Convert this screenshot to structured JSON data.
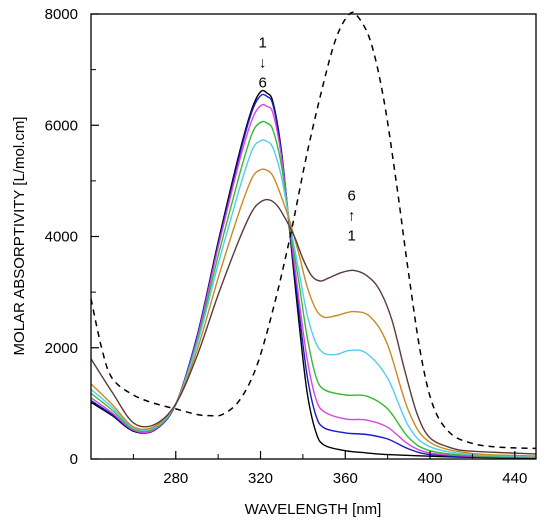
{
  "chart_data": {
    "type": "line",
    "xlabel": "WAVELENGTH [nm]",
    "ylabel": "MOLAR ABSORPTIVITY [L/mol.cm]",
    "xlim": [
      240,
      450
    ],
    "ylim": [
      0,
      8000
    ],
    "xticks": [
      280,
      320,
      360,
      400,
      440
    ],
    "xminor": [
      260,
      300,
      340,
      380,
      420
    ],
    "yticks": [
      0,
      2000,
      4000,
      6000,
      8000
    ],
    "ytick_labels": [
      "0",
      "2000",
      "4000",
      "6000",
      "8000"
    ],
    "xtick_labels": [
      "280",
      "320",
      "360",
      "400",
      "440"
    ],
    "grid": false,
    "annotations": [
      {
        "lines": [
          "1",
          "↓",
          "6"
        ],
        "x": 321,
        "y": 7400
      },
      {
        "lines": [
          "6",
          "↑",
          "1"
        ],
        "x": 363,
        "y": 4650
      }
    ],
    "series": [
      {
        "color": "#000000",
        "dash": false,
        "points": [
          [
            240,
            1020
          ],
          [
            250,
            780
          ],
          [
            260,
            500
          ],
          [
            270,
            520
          ],
          [
            280,
            980
          ],
          [
            290,
            2200
          ],
          [
            300,
            3900
          ],
          [
            310,
            5500
          ],
          [
            316,
            6300
          ],
          [
            320,
            6600
          ],
          [
            323,
            6580
          ],
          [
            326,
            6400
          ],
          [
            330,
            5500
          ],
          [
            334,
            4000
          ],
          [
            338,
            2500
          ],
          [
            342,
            1200
          ],
          [
            346,
            500
          ],
          [
            350,
            250
          ],
          [
            360,
            150
          ],
          [
            370,
            110
          ],
          [
            380,
            80
          ],
          [
            400,
            50
          ],
          [
            420,
            30
          ],
          [
            450,
            20
          ]
        ]
      },
      {
        "color": "#1a1acc",
        "dash": false,
        "points": [
          [
            240,
            1050
          ],
          [
            250,
            800
          ],
          [
            260,
            510
          ],
          [
            270,
            520
          ],
          [
            280,
            990
          ],
          [
            290,
            2200
          ],
          [
            300,
            3850
          ],
          [
            310,
            5450
          ],
          [
            316,
            6250
          ],
          [
            320,
            6530
          ],
          [
            323,
            6520
          ],
          [
            326,
            6350
          ],
          [
            330,
            5480
          ],
          [
            334,
            4050
          ],
          [
            338,
            2700
          ],
          [
            342,
            1500
          ],
          [
            346,
            800
          ],
          [
            350,
            560
          ],
          [
            360,
            470
          ],
          [
            370,
            440
          ],
          [
            380,
            360
          ],
          [
            390,
            180
          ],
          [
            400,
            80
          ],
          [
            420,
            40
          ],
          [
            450,
            25
          ]
        ]
      },
      {
        "color": "#dd44dd",
        "dash": false,
        "points": [
          [
            240,
            1100
          ],
          [
            250,
            830
          ],
          [
            260,
            520
          ],
          [
            270,
            530
          ],
          [
            280,
            990
          ],
          [
            290,
            2150
          ],
          [
            300,
            3800
          ],
          [
            310,
            5350
          ],
          [
            316,
            6100
          ],
          [
            320,
            6350
          ],
          [
            323,
            6340
          ],
          [
            326,
            6200
          ],
          [
            330,
            5400
          ],
          [
            334,
            4100
          ],
          [
            338,
            2900
          ],
          [
            342,
            1800
          ],
          [
            346,
            1100
          ],
          [
            350,
            850
          ],
          [
            360,
            720
          ],
          [
            370,
            700
          ],
          [
            380,
            570
          ],
          [
            390,
            260
          ],
          [
            400,
            110
          ],
          [
            420,
            50
          ],
          [
            450,
            30
          ]
        ]
      },
      {
        "color": "#33bb33",
        "dash": false,
        "points": [
          [
            240,
            1180
          ],
          [
            250,
            880
          ],
          [
            260,
            540
          ],
          [
            270,
            550
          ],
          [
            280,
            990
          ],
          [
            290,
            2100
          ],
          [
            300,
            3650
          ],
          [
            310,
            5100
          ],
          [
            316,
            5850
          ],
          [
            320,
            6050
          ],
          [
            323,
            6040
          ],
          [
            326,
            5900
          ],
          [
            330,
            5250
          ],
          [
            334,
            4150
          ],
          [
            338,
            3200
          ],
          [
            342,
            2200
          ],
          [
            346,
            1500
          ],
          [
            350,
            1250
          ],
          [
            360,
            1150
          ],
          [
            370,
            1130
          ],
          [
            380,
            900
          ],
          [
            390,
            380
          ],
          [
            400,
            150
          ],
          [
            420,
            60
          ],
          [
            450,
            35
          ]
        ]
      },
      {
        "color": "#55ccee",
        "dash": false,
        "points": [
          [
            240,
            1250
          ],
          [
            250,
            930
          ],
          [
            260,
            560
          ],
          [
            270,
            570
          ],
          [
            280,
            990
          ],
          [
            290,
            2050
          ],
          [
            300,
            3500
          ],
          [
            310,
            4850
          ],
          [
            316,
            5550
          ],
          [
            320,
            5720
          ],
          [
            323,
            5710
          ],
          [
            326,
            5580
          ],
          [
            330,
            5050
          ],
          [
            334,
            4200
          ],
          [
            338,
            3400
          ],
          [
            342,
            2600
          ],
          [
            346,
            2100
          ],
          [
            350,
            1900
          ],
          [
            356,
            1880
          ],
          [
            362,
            1950
          ],
          [
            370,
            1900
          ],
          [
            380,
            1450
          ],
          [
            390,
            580
          ],
          [
            400,
            220
          ],
          [
            420,
            80
          ],
          [
            450,
            45
          ]
        ]
      },
      {
        "color": "#cc8822",
        "dash": false,
        "points": [
          [
            240,
            1350
          ],
          [
            250,
            980
          ],
          [
            260,
            580
          ],
          [
            270,
            590
          ],
          [
            280,
            990
          ],
          [
            290,
            1950
          ],
          [
            300,
            3250
          ],
          [
            310,
            4450
          ],
          [
            316,
            5050
          ],
          [
            320,
            5200
          ],
          [
            323,
            5190
          ],
          [
            326,
            5080
          ],
          [
            330,
            4700
          ],
          [
            334,
            4250
          ],
          [
            338,
            3700
          ],
          [
            342,
            3100
          ],
          [
            346,
            2700
          ],
          [
            350,
            2550
          ],
          [
            356,
            2580
          ],
          [
            364,
            2650
          ],
          [
            372,
            2550
          ],
          [
            380,
            2050
          ],
          [
            390,
            850
          ],
          [
            400,
            300
          ],
          [
            420,
            100
          ],
          [
            450,
            55
          ]
        ]
      },
      {
        "color": "#5c3a3a",
        "dash": false,
        "points": [
          [
            240,
            1800
          ],
          [
            250,
            1200
          ],
          [
            260,
            650
          ],
          [
            270,
            620
          ],
          [
            280,
            990
          ],
          [
            290,
            1850
          ],
          [
            300,
            2950
          ],
          [
            310,
            3950
          ],
          [
            316,
            4450
          ],
          [
            320,
            4620
          ],
          [
            324,
            4660
          ],
          [
            328,
            4550
          ],
          [
            332,
            4300
          ],
          [
            336,
            4000
          ],
          [
            340,
            3600
          ],
          [
            344,
            3300
          ],
          [
            348,
            3200
          ],
          [
            352,
            3250
          ],
          [
            358,
            3350
          ],
          [
            364,
            3390
          ],
          [
            370,
            3300
          ],
          [
            376,
            3050
          ],
          [
            382,
            2500
          ],
          [
            388,
            1600
          ],
          [
            394,
            800
          ],
          [
            400,
            380
          ],
          [
            410,
            200
          ],
          [
            420,
            140
          ],
          [
            450,
            90
          ]
        ]
      },
      {
        "color": "#000000",
        "dash": true,
        "points": [
          [
            240,
            2880
          ],
          [
            245,
            2000
          ],
          [
            250,
            1450
          ],
          [
            260,
            1150
          ],
          [
            270,
            1000
          ],
          [
            280,
            900
          ],
          [
            290,
            800
          ],
          [
            296,
            780
          ],
          [
            302,
            800
          ],
          [
            310,
            1050
          ],
          [
            318,
            1650
          ],
          [
            326,
            2700
          ],
          [
            334,
            4000
          ],
          [
            342,
            5500
          ],
          [
            350,
            6800
          ],
          [
            356,
            7600
          ],
          [
            362,
            8000
          ],
          [
            366,
            7950
          ],
          [
            372,
            7500
          ],
          [
            378,
            6500
          ],
          [
            384,
            5000
          ],
          [
            390,
            3300
          ],
          [
            396,
            1800
          ],
          [
            402,
            900
          ],
          [
            410,
            450
          ],
          [
            420,
            280
          ],
          [
            430,
            220
          ],
          [
            440,
            200
          ],
          [
            450,
            190
          ]
        ]
      }
    ]
  }
}
